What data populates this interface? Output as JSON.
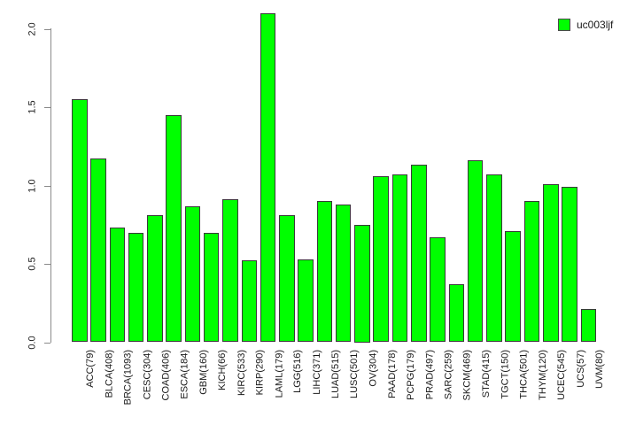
{
  "chart_data": {
    "type": "bar",
    "title": "",
    "xlabel": "",
    "ylabel": "",
    "categories": [
      "ACC(79)",
      "BLCA(408)",
      "BRCA(1093)",
      "CESC(304)",
      "COAD(406)",
      "ESCA(184)",
      "GBM(160)",
      "KICH(66)",
      "KIRC(533)",
      "KIRP(290)",
      "LAML(179)",
      "LGG(516)",
      "LIHC(371)",
      "LUAD(515)",
      "LUSC(501)",
      "OV(304)",
      "PAAD(178)",
      "PCPG(179)",
      "PRAD(497)",
      "SARC(259)",
      "SKCM(469)",
      "STAD(415)",
      "TGCT(150)",
      "THCA(501)",
      "THYM(120)",
      "UCEC(545)",
      "UCS(57)",
      "UVM(80)"
    ],
    "values": [
      1.55,
      1.17,
      0.73,
      0.7,
      0.81,
      1.45,
      0.87,
      0.7,
      0.91,
      0.52,
      2.1,
      0.81,
      0.53,
      0.9,
      0.88,
      0.75,
      1.06,
      1.07,
      1.13,
      0.67,
      0.37,
      1.16,
      1.07,
      0.71,
      0.9,
      1.01,
      0.99,
      0.21
    ],
    "ylim": [
      0.0,
      2.0
    ],
    "yticks": [
      0.0,
      0.5,
      1.0,
      1.5,
      2.0
    ],
    "ytick_labels": [
      "0.0",
      "0.5",
      "1.0",
      "1.5",
      "2.0"
    ],
    "grid": false,
    "legend": {
      "label": "uc003ljf",
      "position": "top-right"
    },
    "colors": {
      "bar_fill": "#00FF00",
      "bar_border": "#3a3a3a",
      "axis": "#8a8a8a",
      "text": "#1a1a1a",
      "background": "#ffffff"
    }
  }
}
